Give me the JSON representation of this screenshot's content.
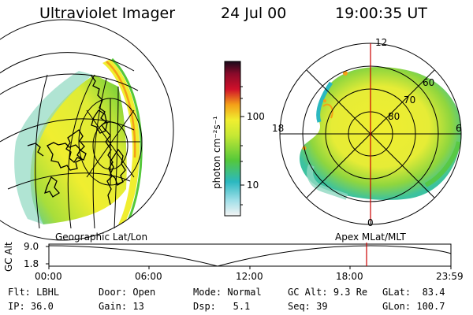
{
  "header": {
    "instrument": "Ultraviolet Imager",
    "date": "24 Jul 00",
    "time": "19:00:35 UT"
  },
  "colorbar": {
    "unit_label": "photon cm⁻²s⁻¹",
    "ticks": [
      "100",
      "10"
    ]
  },
  "polar_plot": {
    "mlt_labels": {
      "top": "12",
      "left": "18",
      "right": "6",
      "bottom": "0"
    },
    "lat_labels": [
      "80",
      "70",
      "60"
    ]
  },
  "projection_labels": {
    "left": "Geographic Lat/Lon",
    "right": "Apex MLat/MLT"
  },
  "altitude_plot": {
    "axis_label": "GC Alt",
    "y_ticks": [
      "9.0",
      "1.8"
    ],
    "x_ticks": [
      "00:00",
      "06:00",
      "12:00",
      "18:00",
      "23:59"
    ],
    "marker_color": "#cc0000"
  },
  "info": {
    "flt_label": "Flt:",
    "flt_value": "LBHL",
    "ip_label": "IP:",
    "ip_value": "36.0",
    "door_label": "Door:",
    "door_value": "Open",
    "gain_label": "Gain:",
    "gain_value": "13",
    "mode_label": "Mode:",
    "mode_value": "Normal",
    "dsp_label": "Dsp:",
    "dsp_value": "5.1",
    "gcalt_label": "GC Alt:",
    "gcalt_value": "9.3 Re",
    "seq_label": "Seq:",
    "seq_value": "39",
    "glat_label": "GLat:",
    "glat_value": "83.4",
    "glon_label": "GLon:",
    "glon_value": "100.7"
  },
  "colors": {
    "cool": "#2bb8c0",
    "green": "#55c83a",
    "yellow": "#f0ee30",
    "orange": "#f4a018",
    "red": "#d0102a"
  }
}
